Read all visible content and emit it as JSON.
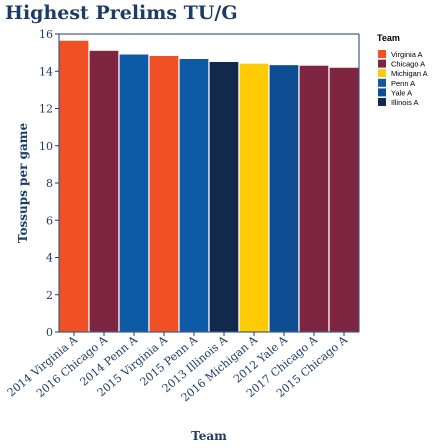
{
  "chart_data": {
    "type": "bar",
    "title": "Highest Prelims TU/G",
    "xlabel": "Team",
    "ylabel": "Tossups per game",
    "ylim": [
      0,
      16
    ],
    "yticks": [
      0,
      2,
      4,
      6,
      8,
      10,
      12,
      14,
      16
    ],
    "grid": true,
    "legend_position": "right",
    "legend_title": "Team",
    "categories": [
      "2014 Virginia A",
      "2016 Chicago A",
      "2014 Penn A",
      "2015 Virginia A",
      "2015 Penn A",
      "2013 Illinois A",
      "2016 Michigan A",
      "2012 Yale A",
      "2017 Chicago A",
      "2015 Chicago A"
    ],
    "values": [
      15.67,
      15.13,
      14.93,
      14.85,
      14.69,
      14.53,
      14.44,
      14.36,
      14.33,
      14.22
    ],
    "bar_team": [
      "Virginia A",
      "Chicago A",
      "Penn A",
      "Virginia A",
      "Penn A",
      "Illinois A",
      "Michigan A",
      "Yale A",
      "Chicago A",
      "Chicago A"
    ],
    "legend": [
      {
        "name": "Virginia A",
        "color": "#f05023"
      },
      {
        "name": "Chicago A",
        "color": "#7e2541"
      },
      {
        "name": "Michigan A",
        "color": "#ffcb05"
      },
      {
        "name": "Penn A",
        "color": "#0d5aa7"
      },
      {
        "name": "Yale A",
        "color": "#0f4d92"
      },
      {
        "name": "Illinois A",
        "color": "#13294b"
      }
    ],
    "colors": {
      "axis": "#1b3c66",
      "title": "#1b3c66",
      "grid": "#1b3c66",
      "bar_edge": "#ffffff"
    }
  }
}
